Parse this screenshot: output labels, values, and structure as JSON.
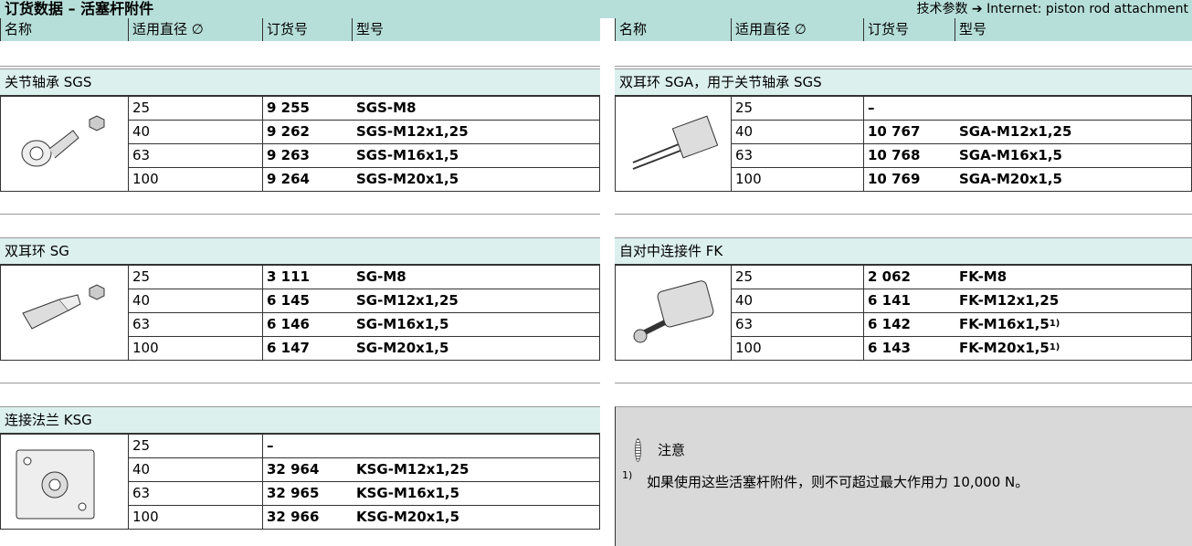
{
  "header": {
    "title": "订货数据 – 活塞杆附件",
    "link": "技术参数 ➔ Internet: piston rod attachment"
  },
  "columns": [
    "名称",
    "适用直径 ∅",
    "订货号",
    "型号"
  ],
  "left": [
    {
      "name": "关节轴承 SGS",
      "rows": [
        {
          "diameter": "25",
          "order": "9 255",
          "model": "SGS-M8"
        },
        {
          "diameter": "40",
          "order": "9 262",
          "model": "SGS-M12x1,25"
        },
        {
          "diameter": "63",
          "order": "9 263",
          "model": "SGS-M16x1,5"
        },
        {
          "diameter": "100",
          "order": "9 264",
          "model": "SGS-M20x1,5"
        }
      ]
    },
    {
      "name": "双耳环 SG",
      "rows": [
        {
          "diameter": "25",
          "order": "3 111",
          "model": "SG-M8"
        },
        {
          "diameter": "40",
          "order": "6 145",
          "model": "SG-M12x1,25"
        },
        {
          "diameter": "63",
          "order": "6 146",
          "model": "SG-M16x1,5"
        },
        {
          "diameter": "100",
          "order": "6 147",
          "model": "SG-M20x1,5"
        }
      ]
    },
    {
      "name": "连接法兰 KSG",
      "rows": [
        {
          "diameter": "25",
          "order": "–"
        },
        {
          "diameter": "40",
          "order": "32 964",
          "model": "KSG-M12x1,25"
        },
        {
          "diameter": "63",
          "order": "32 965",
          "model": "KSG-M16x1,5"
        },
        {
          "diameter": "100",
          "order": "32 966",
          "model": "KSG-M20x1,5"
        }
      ]
    }
  ],
  "right": [
    {
      "name": "双耳环 SGA，用于关节轴承 SGS",
      "rows": [
        {
          "diameter": "25",
          "order": "–"
        },
        {
          "diameter": "40",
          "order": "10 767",
          "model": "SGA-M12x1,25"
        },
        {
          "diameter": "63",
          "order": "10 768",
          "model": "SGA-M16x1,5"
        },
        {
          "diameter": "100",
          "order": "10 769",
          "model": "SGA-M20x1,5"
        }
      ]
    },
    {
      "name": "自对中连接件 FK",
      "rows": [
        {
          "diameter": "25",
          "order": "2 062",
          "model": "FK-M8"
        },
        {
          "diameter": "40",
          "order": "6 141",
          "model": "FK-M12x1,25"
        },
        {
          "diameter": "63",
          "order": "6 142",
          "model": "FK-M16x1,5",
          "footnote": "1)"
        },
        {
          "diameter": "100",
          "order": "6 143",
          "model": "FK-M20x1,5",
          "footnote": "1)"
        }
      ]
    }
  ],
  "note": {
    "label": "注意",
    "mark": "1)",
    "text": "如果使用这些活塞杆附件，则不可超过最大作用力 10,000 N。"
  }
}
